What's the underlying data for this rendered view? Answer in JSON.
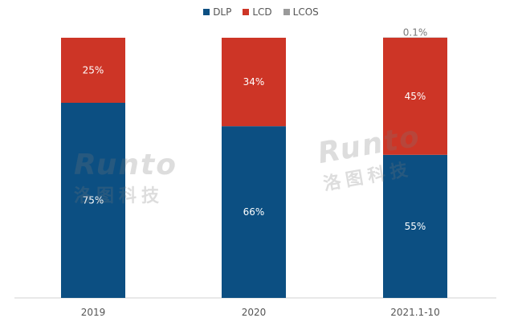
{
  "colors": {
    "DLP": "#0c4f82",
    "LCD": "#cd3526",
    "LCOS": "#9a9a9a"
  },
  "legend": [
    {
      "name": "DLP",
      "color": "#0c4f82"
    },
    {
      "name": "LCD",
      "color": "#cd3526"
    },
    {
      "name": "LCOS",
      "color": "#9a9a9a"
    }
  ],
  "watermark": {
    "brand": "Runto",
    "cn": "洛图科技"
  },
  "chart_data": {
    "type": "bar",
    "stacked": true,
    "percent": true,
    "categories": [
      "2019",
      "2020",
      "2021.1-10"
    ],
    "series": [
      {
        "name": "DLP",
        "values": [
          75,
          66,
          55
        ],
        "labels": [
          "75%",
          "66%",
          "55%"
        ]
      },
      {
        "name": "LCD",
        "values": [
          25,
          34,
          45
        ],
        "labels": [
          "25%",
          "34%",
          "45%"
        ]
      },
      {
        "name": "LCOS",
        "values": [
          0,
          0,
          0.1
        ],
        "labels": [
          "",
          "",
          "0.1%"
        ]
      }
    ],
    "ylim": [
      0,
      100
    ],
    "grid": false,
    "legend_position": "top-center"
  }
}
